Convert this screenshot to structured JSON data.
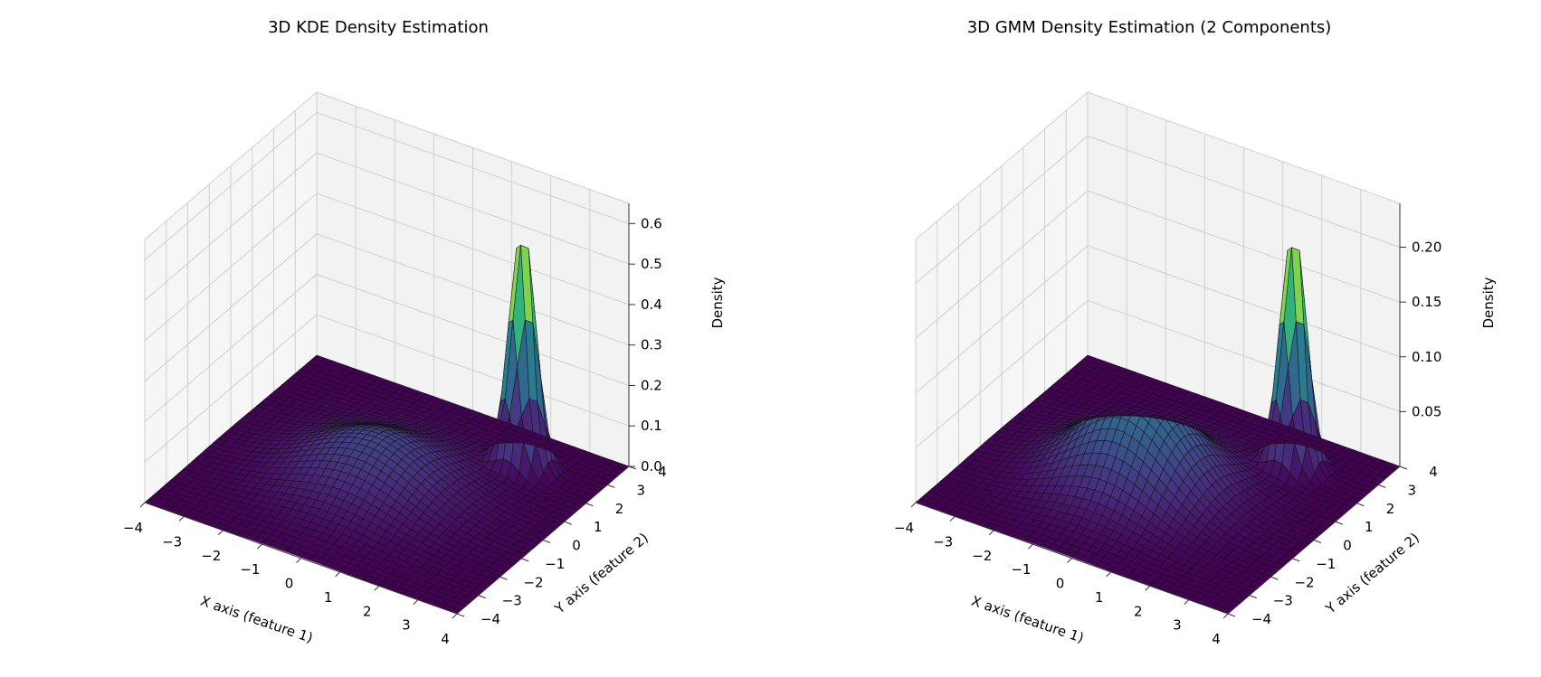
{
  "chart_data": [
    {
      "type": "surface",
      "title": "3D KDE Density Estimation",
      "xlabel": "X axis (feature 1)",
      "ylabel": "Y axis (feature 2)",
      "zlabel": "Density",
      "xlim": [
        -4,
        4
      ],
      "ylim": [
        -4,
        4
      ],
      "zlim": [
        0,
        0.65
      ],
      "xticks": [
        "−4",
        "−3",
        "−2",
        "−1",
        "0",
        "1",
        "2",
        "3",
        "4"
      ],
      "yticks": [
        "−4",
        "−3",
        "−2",
        "−1",
        "0",
        "1",
        "2",
        "3",
        "4"
      ],
      "zticks": [
        "0.0",
        "0.1",
        "0.2",
        "0.3",
        "0.4",
        "0.5",
        "0.6"
      ],
      "colormap": "viridis",
      "grid": true,
      "components": [
        {
          "mx": 2.1,
          "my": 2.5,
          "sx": 0.3,
          "sy": 0.3,
          "peak": 0.6
        },
        {
          "mx": -0.2,
          "my": -0.2,
          "sx": 1.4,
          "sy": 1.4,
          "peak": 0.12
        }
      ]
    },
    {
      "type": "surface",
      "title": "3D GMM Density Estimation (2 Components)",
      "xlabel": "X axis (feature 1)",
      "ylabel": "Y axis (feature 2)",
      "zlabel": "Density",
      "xlim": [
        -4,
        4
      ],
      "ylim": [
        -4,
        4
      ],
      "zlim": [
        0,
        0.24
      ],
      "xticks": [
        "−4",
        "−3",
        "−2",
        "−1",
        "0",
        "1",
        "2",
        "3",
        "4"
      ],
      "yticks": [
        "−4",
        "−3",
        "−2",
        "−1",
        "0",
        "1",
        "2",
        "3",
        "4"
      ],
      "zticks": [
        "0.05",
        "0.10",
        "0.15",
        "0.20"
      ],
      "colormap": "viridis",
      "grid": true,
      "components": [
        {
          "mx": 2.1,
          "my": 2.5,
          "sx": 0.3,
          "sy": 0.3,
          "peak": 0.22
        },
        {
          "mx": -0.3,
          "my": -0.3,
          "sx": 1.25,
          "sy": 1.25,
          "peak": 0.085
        }
      ]
    }
  ]
}
